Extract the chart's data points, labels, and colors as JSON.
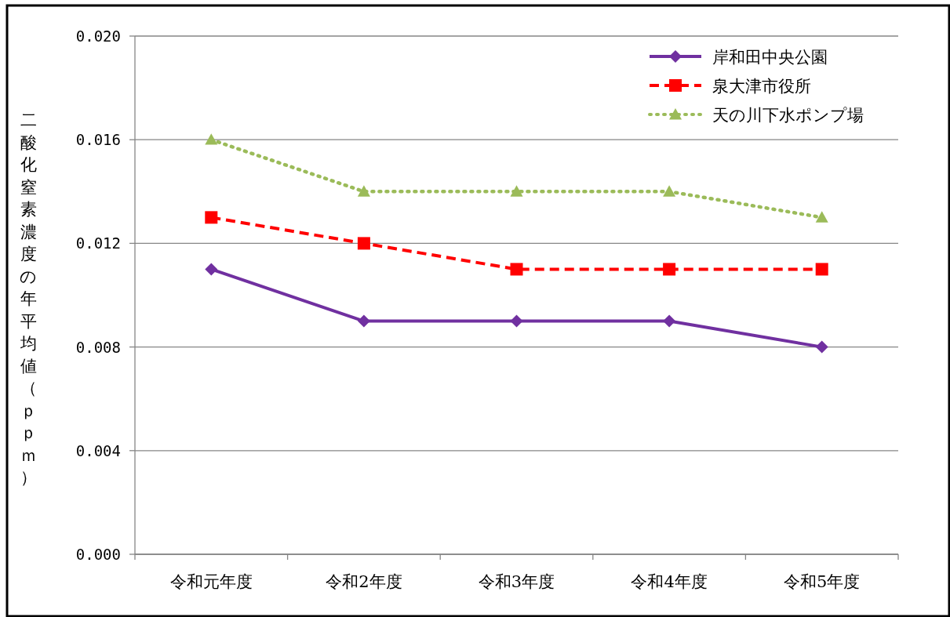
{
  "chart_data": {
    "type": "line",
    "ylabel": "二酸化窒素濃度の年平均値（ｐｐｍ）",
    "categories": [
      "令和元年度",
      "令和2年度",
      "令和3年度",
      "令和4年度",
      "令和5年度"
    ],
    "ylim": [
      0,
      0.02
    ],
    "yticks": [
      {
        "value": 0,
        "label": "0.000"
      },
      {
        "value": 0.004,
        "label": "0.004"
      },
      {
        "value": 0.008,
        "label": "0.008"
      },
      {
        "value": 0.012,
        "label": "0.012"
      },
      {
        "value": 0.016,
        "label": "0.016"
      },
      {
        "value": 0.02,
        "label": "0.020"
      }
    ],
    "grid": "y",
    "legend": "top right",
    "series": [
      {
        "name": "岸和田中央公園",
        "color": "#7030a0",
        "marker": "diamond",
        "line_style": "solid",
        "values": [
          0.011,
          0.009,
          0.009,
          0.009,
          0.008
        ]
      },
      {
        "name": "泉大津市役所",
        "color": "#ff0000",
        "marker": "square",
        "line_style": "dashed",
        "values": [
          0.013,
          0.012,
          0.011,
          0.011,
          0.011
        ]
      },
      {
        "name": "天の川下水ポンプ場",
        "color": "#9bbb59",
        "marker": "triangle",
        "line_style": "dotted",
        "values": [
          0.016,
          0.014,
          0.014,
          0.014,
          0.013
        ]
      }
    ]
  }
}
